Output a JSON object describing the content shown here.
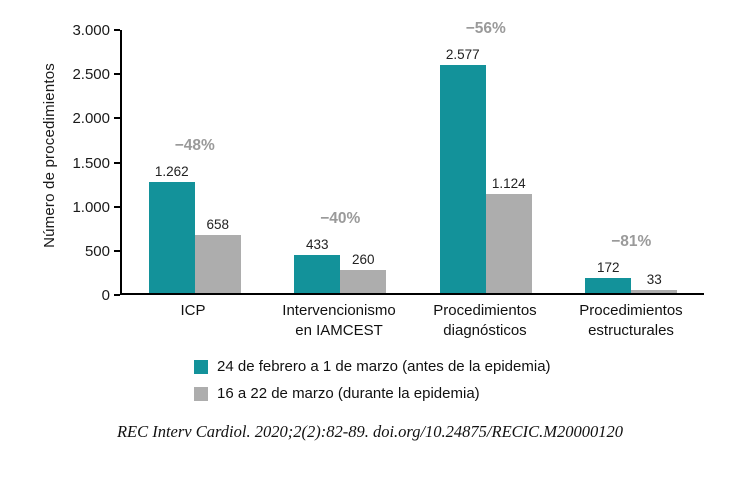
{
  "chart_data": {
    "type": "bar",
    "title": "",
    "ylabel": "Número de procedimientos",
    "xlabel": "",
    "ylim": [
      0,
      3000
    ],
    "yticks": [
      0,
      500,
      1000,
      1500,
      2000,
      2500,
      3000
    ],
    "ytick_labels": [
      "0",
      "500",
      "1.000",
      "1.500",
      "2.000",
      "2.500",
      "3.000"
    ],
    "categories": [
      "ICP",
      "Intervencionismo\nen IAMCEST",
      "Procedimientos\ndiagnósticos",
      "Procedimientos\nestructurales"
    ],
    "series": [
      {
        "name": "24 de febrero a 1 de marzo (antes de la epidemia)",
        "color": "#13929A",
        "values": [
          1262,
          433,
          2577,
          172
        ],
        "labels": [
          "1.262",
          "433",
          "2.577",
          "172"
        ]
      },
      {
        "name": "16 a 22 de marzo (durante la epidemia)",
        "color": "#ADADAD",
        "values": [
          658,
          260,
          1124,
          33
        ],
        "labels": [
          "658",
          "260",
          "1.124",
          "33"
        ]
      }
    ],
    "annotations": [
      "−48%",
      "−40%",
      "−56%",
      "−81%"
    ],
    "legend_position": "bottom",
    "grid": false
  },
  "footer": {
    "citation": "REC Interv Cardiol. 2020;2(2):82-89. doi.org/10.24875/RECIC.M20000120"
  },
  "colors": {
    "bar_before": "#13929A",
    "bar_during": "#ADADAD",
    "percent_label": "#9a9a9a",
    "axis": "#000000",
    "text": "#111111"
  }
}
